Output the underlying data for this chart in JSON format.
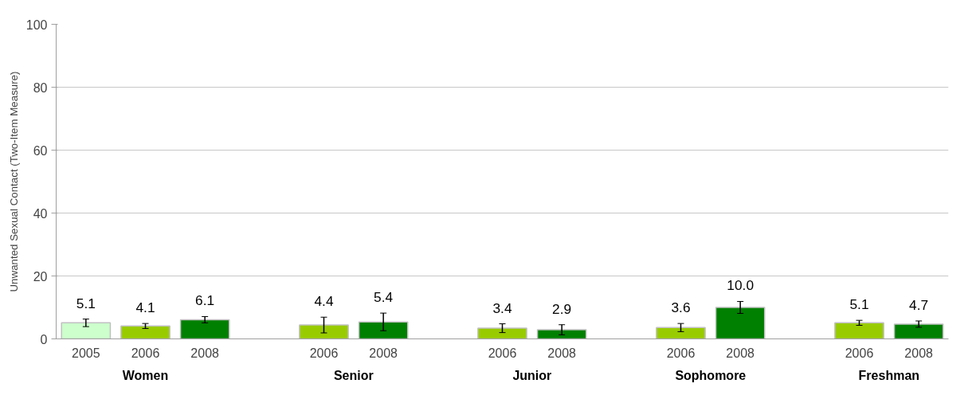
{
  "chart_data": {
    "type": "bar",
    "ylabel": "Unwanted Sexual Contact (Two-Item Measure)",
    "categories": [
      "2005",
      "2006",
      "2008",
      null,
      "2006",
      "2008",
      null,
      "2006",
      "2008",
      null,
      "2006",
      "2008",
      null,
      "2006",
      "2008"
    ],
    "values": [
      5.1,
      4.1,
      6.1,
      null,
      4.4,
      5.4,
      null,
      3.4,
      2.9,
      null,
      3.6,
      10.0,
      null,
      5.1,
      4.7
    ],
    "colors": [
      "#ccffcc",
      "#99cc00",
      "#008000",
      null,
      "#99cc00",
      "#008000",
      null,
      "#99cc00",
      "#008000",
      null,
      "#99cc00",
      "#008000",
      null,
      "#99cc00",
      "#008000"
    ],
    "errors": [
      1.2,
      0.8,
      1.0,
      null,
      2.5,
      2.8,
      null,
      1.4,
      1.6,
      null,
      1.3,
      1.9,
      null,
      0.8,
      1.0
    ],
    "value_labels": [
      "5.1",
      "4.1",
      "6.1",
      null,
      "4.4",
      "5.4",
      null,
      "3.4",
      "2.9",
      null,
      "3.6",
      "10.0",
      null,
      "5.1",
      "4.7"
    ],
    "annotations": [
      "Women",
      "Senior",
      "Junior",
      "Sophomore",
      "Freshman"
    ],
    "ylim": [
      0,
      100
    ],
    "yticks": [
      0,
      20,
      40,
      60,
      80,
      100
    ],
    "grid": "y"
  }
}
